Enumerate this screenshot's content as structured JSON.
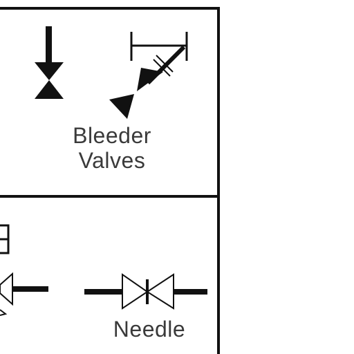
{
  "diagram": {
    "cells": {
      "bleeder_valves": {
        "label_line1": "Bleeder",
        "label_line2": "Valves"
      },
      "needle": {
        "label": "Needle"
      }
    },
    "icons": [
      "gate-valve-symbol-icon",
      "angle-bleeder-valve-symbol-icon",
      "needle-valve-symbol-icon",
      "partial-valve-symbol-icon",
      "partial-box-symbol-icon"
    ],
    "colors": {
      "line": "#111111",
      "text": "#3a3a3a",
      "background": "#ffffff"
    }
  }
}
